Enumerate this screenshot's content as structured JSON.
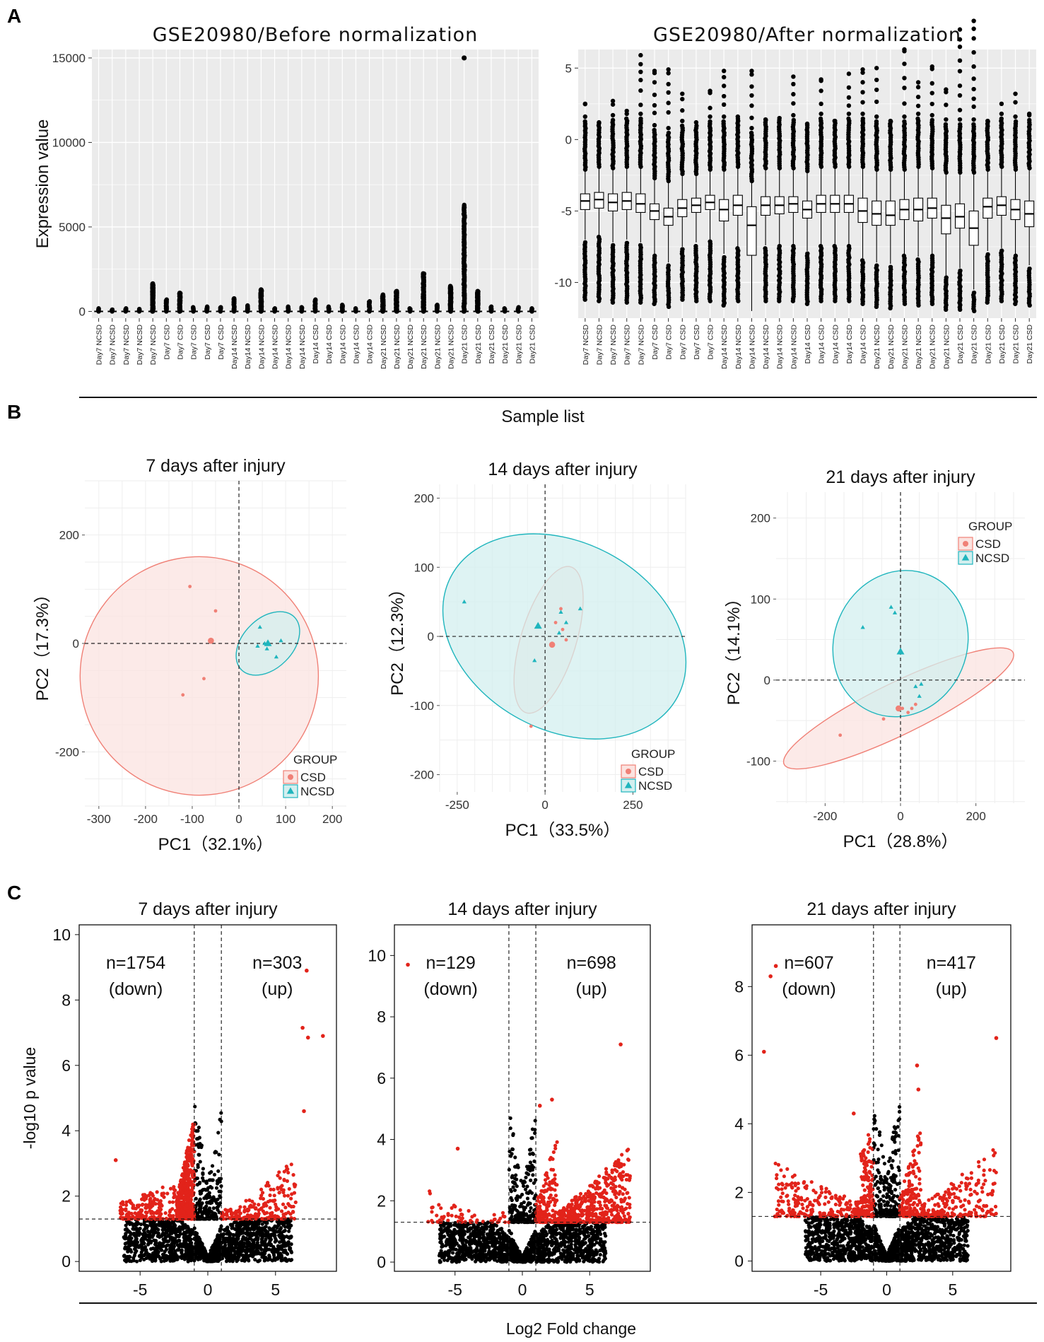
{
  "panel_labels": {
    "a": "A",
    "b": "B",
    "c": "C"
  },
  "colors": {
    "csd": "#f08076",
    "csd_fill": "#fbe3e0",
    "ncsd": "#1fb5bd",
    "ncsd_fill": "#d3efef",
    "sig": "#e2231a",
    "nonsig": "#000000",
    "panel_bg": "#ebebeb"
  },
  "shared": {
    "sample_list_label": "Sample list",
    "log2fc_label": "Log2 Fold change"
  },
  "chart_data": [
    {
      "id": "A1",
      "type": "boxplot",
      "title": "GSE20980/Before normalization",
      "ylabel": "Expression value",
      "ylim": [
        -400,
        15500
      ],
      "yticks": [
        0,
        5000,
        10000,
        15000
      ],
      "ytick_labels": [
        "0",
        "5000",
        "10000",
        "15000"
      ],
      "categories": [
        "Day7 NCSD",
        "Day7 NCSD",
        "Day7 NCSD",
        "Day7 NCSD",
        "Day7 NCSD",
        "Day7 CSD",
        "Day7 CSD",
        "Day7 CSD",
        "Day7 CSD",
        "Day7 CSD",
        "Day14 NCSD",
        "Day14 NCSD",
        "Day14 NCSD",
        "Day14 NCSD",
        "Day14 NCSD",
        "Day14 NCSD",
        "Day14 CSD",
        "Day14 CSD",
        "Day14 CSD",
        "Day14 CSD",
        "Day14 CSD",
        "Day21 NCSD",
        "Day21 NCSD",
        "Day21 NCSD",
        "Day21 NCSD",
        "Day21 NCSD",
        "Day21 NCSD",
        "Day21 CSD",
        "Day21 CSD",
        "Day21 CSD",
        "Day21 CSD",
        "Day21 CSD",
        "Day21 CSD"
      ],
      "outlier_max": [
        180,
        120,
        200,
        150,
        1650,
        700,
        1100,
        250,
        300,
        250,
        800,
        350,
        1300,
        200,
        300,
        250,
        700,
        300,
        400,
        200,
        600,
        1000,
        1200,
        200,
        2250,
        400,
        1500,
        6300,
        1200,
        300,
        200,
        250,
        200
      ],
      "top_outlier": {
        "index": 27,
        "value": 15000
      }
    },
    {
      "id": "A2",
      "type": "boxplot",
      "title": "GSE20980/After normalization",
      "ylabel": "",
      "ylim": [
        -12.5,
        6.3
      ],
      "yticks": [
        -10,
        -5,
        0,
        5
      ],
      "ytick_labels": [
        "-10",
        "-5",
        "0",
        "5"
      ],
      "categories": [
        "Day7 NCSD",
        "Day7 NCSD",
        "Day7 NCSD",
        "Day7 NCSD",
        "Day7 NCSD",
        "Day7 CSD",
        "Day7 CSD",
        "Day7 CSD",
        "Day7 CSD",
        "Day7 CSD",
        "Day14 NCSD",
        "Day14 NCSD",
        "Day14 NCSD",
        "Day14 NCSD",
        "Day14 NCSD",
        "Day14 NCSD",
        "Day14 CSD",
        "Day14 CSD",
        "Day14 CSD",
        "Day14 CSD",
        "Day14 CSD",
        "Day21 NCSD",
        "Day21 NCSD",
        "Day21 NCSD",
        "Day21 NCSD",
        "Day21 NCSD",
        "Day21 NCSD",
        "Day21 CSD",
        "Day21 CSD",
        "Day21 CSD",
        "Day21 CSD",
        "Day21 CSD",
        "Day21 CSD"
      ],
      "medians": [
        -4.3,
        -4.2,
        -4.4,
        -4.3,
        -4.5,
        -5.0,
        -5.4,
        -4.8,
        -4.6,
        -4.4,
        -4.9,
        -4.6,
        -6.0,
        -4.6,
        -4.6,
        -4.5,
        -4.9,
        -4.5,
        -4.5,
        -4.5,
        -5.0,
        -5.2,
        -5.3,
        -4.9,
        -4.9,
        -4.8,
        -5.5,
        -5.4,
        -6.2,
        -4.7,
        -4.6,
        -4.9,
        -5.2
      ],
      "q1": [
        -4.9,
        -4.8,
        -5.0,
        -4.9,
        -5.1,
        -5.6,
        -6.0,
        -5.4,
        -5.1,
        -4.9,
        -5.7,
        -5.3,
        -8.1,
        -5.3,
        -5.2,
        -5.1,
        -5.5,
        -5.1,
        -5.1,
        -5.1,
        -5.8,
        -6.0,
        -6.0,
        -5.6,
        -5.7,
        -5.5,
        -6.6,
        -6.2,
        -7.4,
        -5.5,
        -5.3,
        -5.6,
        -6.1
      ],
      "q3": [
        -3.8,
        -3.7,
        -3.8,
        -3.7,
        -3.8,
        -4.5,
        -4.8,
        -4.2,
        -4.1,
        -3.9,
        -4.2,
        -3.9,
        -4.7,
        -4.0,
        -4.0,
        -4.0,
        -4.3,
        -3.9,
        -3.9,
        -3.9,
        -4.1,
        -4.3,
        -4.3,
        -4.2,
        -4.1,
        -4.1,
        -4.6,
        -4.5,
        -5.0,
        -4.1,
        -4.0,
        -4.2,
        -4.3
      ],
      "whisker_low": [
        -7.0,
        -6.7,
        -7.2,
        -7.0,
        -7.2,
        -8.0,
        -8.6,
        -7.5,
        -7.2,
        -7.0,
        -8.0,
        -7.5,
        -12.0,
        -7.4,
        -7.3,
        -7.3,
        -7.8,
        -7.3,
        -7.3,
        -7.3,
        -8.3,
        -8.6,
        -8.7,
        -8.0,
        -8.2,
        -8.0,
        -9.5,
        -9.0,
        -10.5,
        -7.8,
        -7.6,
        -8.0,
        -8.8
      ],
      "whisker_high": [
        -2.2,
        -2.0,
        -2.1,
        -2.0,
        -2.0,
        -2.8,
        -3.0,
        -2.5,
        -2.5,
        -2.2,
        -2.2,
        -2.0,
        -3.0,
        -2.1,
        -2.1,
        -2.1,
        -2.3,
        -2.0,
        -2.0,
        -2.0,
        -2.0,
        -2.2,
        -2.2,
        -2.2,
        -2.0,
        -2.1,
        -2.4,
        -2.4,
        -2.4,
        -2.2,
        -2.0,
        -2.2,
        -2.1
      ],
      "outlier_max": [
        2.5,
        1.2,
        2.7,
        2.0,
        5.9,
        4.8,
        4.9,
        3.2,
        1.2,
        3.4,
        4.8,
        1.6,
        4.8,
        1.4,
        1.5,
        4.4,
        1.1,
        4.2,
        1.3,
        4.6,
        4.9,
        5.0,
        1.3,
        6.3,
        4.0,
        5.1,
        3.5,
        7.7,
        8.3,
        1.3,
        2.5,
        3.2,
        1.8
      ],
      "outlier_min": [
        -11.2,
        -11.3,
        -11.4,
        -11.4,
        -11.4,
        -11.5,
        -11.7,
        -11.2,
        -11.3,
        -11.3,
        -11.6,
        -11.3,
        -11.7,
        -11.3,
        -11.3,
        -11.3,
        -11.5,
        -11.3,
        -11.3,
        -11.3,
        -11.5,
        -11.7,
        -11.8,
        -11.5,
        -11.6,
        -11.5,
        -11.9,
        -11.9,
        -12.0,
        -11.4,
        -11.3,
        -11.5,
        -11.6
      ]
    },
    {
      "id": "B1",
      "type": "scatter",
      "title": "7 days after injury",
      "xlabel": "PC1（32.1%）",
      "ylabel": "PC2（17.3%）",
      "xlim": [
        -330,
        230
      ],
      "ylim": [
        -300,
        300
      ],
      "xticks": [
        -300,
        -200,
        -100,
        0,
        100,
        200
      ],
      "yticks": [
        -200,
        0,
        200
      ],
      "xtick_labels": [
        "-300",
        "-200",
        "-100",
        "0",
        "100",
        "200"
      ],
      "ytick_labels": [
        "-200",
        "0",
        "200"
      ],
      "legend": {
        "title": "GROUP",
        "position": "bottom-right",
        "entries": [
          "CSD",
          "NCSD"
        ]
      },
      "series": [
        {
          "name": "CSD",
          "points": [
            [
              -105,
              105
            ],
            [
              -50,
              60
            ],
            [
              -120,
              -95
            ],
            [
              -75,
              -65
            ],
            [
              -60,
              5
            ]
          ],
          "centroid": [
            -60,
            5
          ],
          "ellipse": {
            "cx": -85,
            "cy": -60,
            "rx": 255,
            "ry": 220,
            "angle": -30
          }
        },
        {
          "name": "NCSD",
          "points": [
            [
              45,
              30
            ],
            [
              90,
              5
            ],
            [
              40,
              -5
            ],
            [
              60,
              -10
            ],
            [
              80,
              -25
            ],
            [
              55,
              0
            ]
          ],
          "centroid": [
            62,
            0
          ],
          "ellipse": {
            "cx": 62,
            "cy": 0,
            "rx": 80,
            "ry": 46,
            "angle": -45
          }
        }
      ]
    },
    {
      "id": "B2",
      "type": "scatter",
      "title": "14 days after injury",
      "xlabel": "PC1（33.5%）",
      "ylabel": "PC2（12.3%）",
      "xlim": [
        -300,
        400
      ],
      "ylim": [
        -225,
        220
      ],
      "xticks": [
        -250,
        0,
        250
      ],
      "yticks": [
        -200,
        -100,
        0,
        100,
        200
      ],
      "xtick_labels": [
        "-250",
        "0",
        "250"
      ],
      "ytick_labels": [
        "-200",
        "-100",
        "0",
        "100",
        "200"
      ],
      "legend": {
        "title": "GROUP",
        "position": "bottom-right",
        "entries": [
          "CSD",
          "NCSD"
        ]
      },
      "series": [
        {
          "name": "CSD",
          "points": [
            [
              -40,
              -130
            ],
            [
              60,
              -5
            ],
            [
              50,
              10
            ],
            [
              45,
              40
            ],
            [
              30,
              20
            ],
            [
              20,
              -10
            ]
          ],
          "centroid": [
            20,
            -12
          ],
          "ellipse": {
            "cx": 10,
            "cy": -5,
            "rx": 217,
            "ry": 40,
            "angle": -73
          }
        },
        {
          "name": "NCSD",
          "points": [
            [
              -230,
              50
            ],
            [
              45,
              35
            ],
            [
              60,
              20
            ],
            [
              40,
              5
            ],
            [
              -30,
              -35
            ],
            [
              100,
              40
            ]
          ],
          "centroid": [
            -20,
            15
          ],
          "ellipse": {
            "cx": 55,
            "cy": 0,
            "rx": 365,
            "ry": 136,
            "angle": 28
          }
        }
      ]
    },
    {
      "id": "B3",
      "type": "scatter",
      "title": "21 days after injury",
      "xlabel": "PC1（28.8%）",
      "ylabel": "PC2（14.1%）",
      "xlim": [
        -330,
        330
      ],
      "ylim": [
        -152,
        232
      ],
      "xticks": [
        -200,
        0,
        200
      ],
      "yticks": [
        -100,
        0,
        100,
        200
      ],
      "xtick_labels": [
        "-200",
        "0",
        "200"
      ],
      "ytick_labels": [
        "-100",
        "0",
        "100",
        "200"
      ],
      "legend": {
        "title": "GROUP",
        "position": "top-right",
        "entries": [
          "CSD",
          "NCSD"
        ]
      },
      "series": [
        {
          "name": "CSD",
          "points": [
            [
              -160,
              -68
            ],
            [
              -45,
              -48
            ],
            [
              30,
              -35
            ],
            [
              40,
              -30
            ],
            [
              20,
              -40
            ],
            [
              5,
              -35
            ]
          ],
          "centroid": [
            -5,
            -35
          ],
          "ellipse": {
            "cx": -5,
            "cy": -35,
            "rx": 338,
            "ry": 32,
            "angle": -26
          }
        },
        {
          "name": "NCSD",
          "points": [
            [
              -100,
              65
            ],
            [
              -25,
              90
            ],
            [
              -15,
              83
            ],
            [
              55,
              -5
            ],
            [
              50,
              -20
            ],
            [
              40,
              -8
            ]
          ],
          "centroid": [
            0,
            35
          ],
          "ellipse": {
            "cx": 0,
            "cy": 45,
            "rx": 197,
            "ry": 82,
            "angle": -67
          }
        }
      ]
    },
    {
      "id": "C1",
      "type": "volcano",
      "title": "7 days after injury",
      "xlabel": "",
      "ylabel": "-log10 p value",
      "xlim": [
        -9.5,
        9.5
      ],
      "ylim": [
        -0.3,
        10.3
      ],
      "xticks": [
        -5,
        0,
        5
      ],
      "yticks": [
        0,
        2,
        4,
        6,
        8,
        10
      ],
      "xtick_labels": [
        "-5",
        "0",
        "5"
      ],
      "ytick_labels": [
        "0",
        "2",
        "4",
        "6",
        "8",
        "10"
      ],
      "fc_threshold": 1,
      "p_threshold_line": 1.3,
      "down_count": "n=1754",
      "down_label": "(down)",
      "up_count": "n=303",
      "up_label": "(up)",
      "outliers": [
        [
          7.3,
          8.9
        ],
        [
          7.0,
          7.15
        ],
        [
          7.4,
          6.85
        ],
        [
          8.5,
          6.9
        ],
        [
          7.1,
          4.6
        ],
        [
          -6.8,
          3.1
        ]
      ]
    },
    {
      "id": "C2",
      "type": "volcano",
      "title": "14 days after injury",
      "xlabel": "",
      "ylabel": "",
      "xlim": [
        -9.5,
        9.5
      ],
      "ylim": [
        -0.3,
        11.0
      ],
      "xticks": [
        -5,
        0,
        5
      ],
      "yticks": [
        0,
        2,
        4,
        6,
        8,
        10
      ],
      "xtick_labels": [
        "-5",
        "0",
        "5"
      ],
      "ytick_labels": [
        "0",
        "2",
        "4",
        "6",
        "8",
        "10"
      ],
      "fc_threshold": 1,
      "p_threshold_line": 1.3,
      "down_count": "n=129",
      "down_label": "(down)",
      "up_count": "n=698",
      "up_label": "(up)",
      "outliers": [
        [
          -8.5,
          9.7
        ],
        [
          7.3,
          7.1
        ],
        [
          2.2,
          5.3
        ],
        [
          -4.8,
          3.7
        ],
        [
          1.3,
          5.1
        ]
      ]
    },
    {
      "id": "C3",
      "type": "volcano",
      "title": "21 days after injury",
      "xlabel": "",
      "ylabel": "",
      "xlim": [
        -10.2,
        9.4
      ],
      "ylim": [
        -0.3,
        9.8
      ],
      "xticks": [
        -5,
        0,
        5
      ],
      "yticks": [
        0,
        2,
        4,
        6,
        8
      ],
      "xtick_labels": [
        "-5",
        "0",
        "5"
      ],
      "ytick_labels": [
        "0",
        "2",
        "4",
        "6",
        "8"
      ],
      "fc_threshold": 1,
      "p_threshold_line": 1.3,
      "down_count": "n=607",
      "down_label": "(down)",
      "up_count": "n=417",
      "up_label": "(up)",
      "outliers": [
        [
          -8.4,
          8.6
        ],
        [
          -8.8,
          8.3
        ],
        [
          -9.3,
          6.1
        ],
        [
          8.3,
          6.5
        ],
        [
          2.3,
          5.7
        ],
        [
          2.4,
          5.0
        ],
        [
          -2.5,
          4.3
        ]
      ]
    }
  ]
}
